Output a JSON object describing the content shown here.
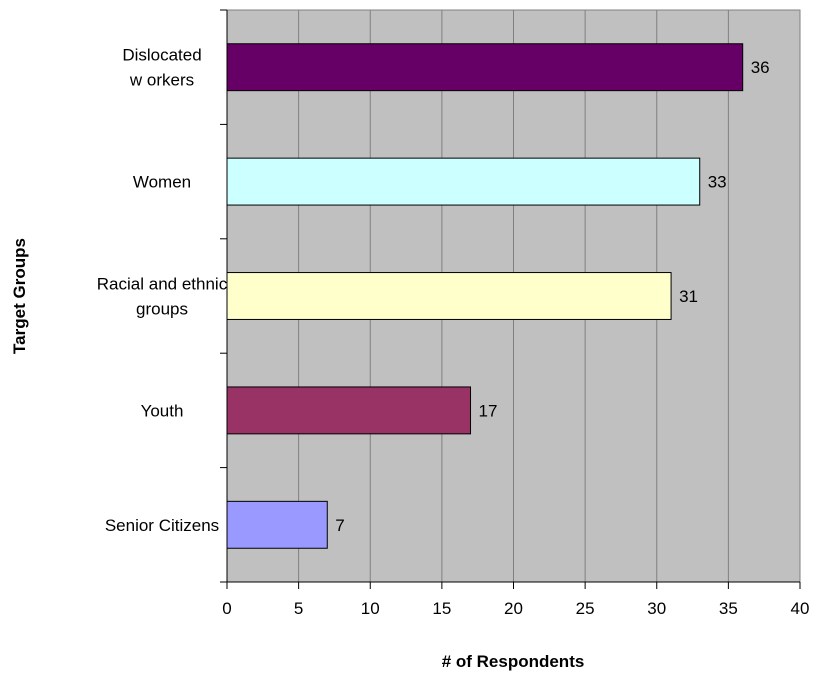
{
  "chart_data": {
    "type": "bar",
    "orientation": "horizontal",
    "categories": [
      [
        "Dislocated",
        "w orkers"
      ],
      [
        "Women"
      ],
      [
        "Racial and ethnic",
        "groups"
      ],
      [
        "Youth"
      ],
      [
        "Senior Citizens"
      ]
    ],
    "values": [
      36,
      33,
      31,
      17,
      7
    ],
    "bar_colors": [
      "#660066",
      "#ccffff",
      "#ffffcc",
      "#993366",
      "#9999ff"
    ],
    "xlabel": "# of Respondents",
    "ylabel": "Target Groups",
    "xlim": [
      0,
      40
    ],
    "xticks": [
      0,
      5,
      10,
      15,
      20,
      25,
      30,
      35,
      40
    ],
    "grid": true,
    "plot_background": "#c0c0c0",
    "legend": "none"
  }
}
